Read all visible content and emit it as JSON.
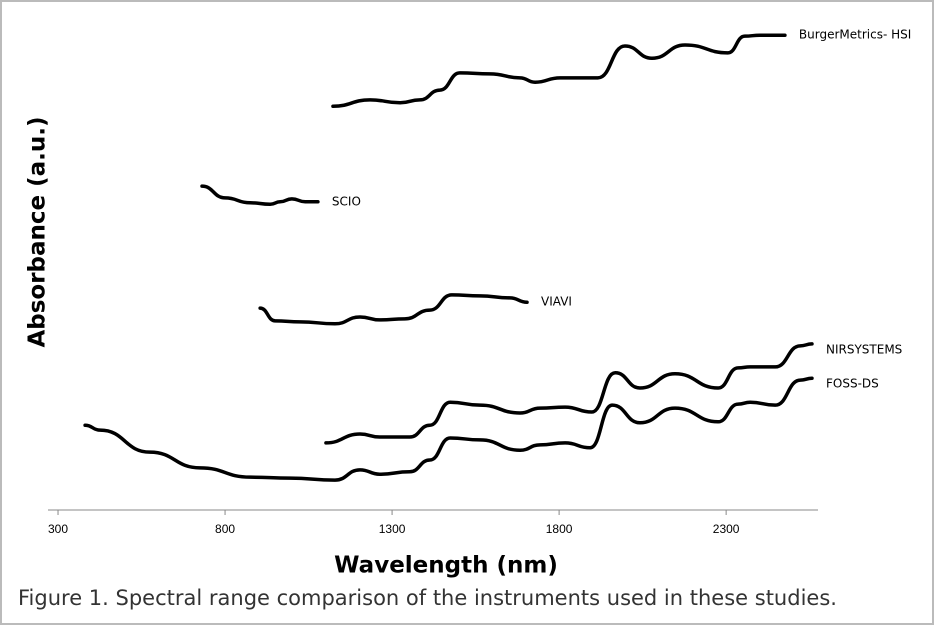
{
  "chart_data": {
    "type": "line",
    "caption": "Figure 1. Spectral range comparison of the instruments used in these studies.",
    "x_label": "Wavelength (nm)",
    "y_label": "Absorbance (a.u.)",
    "xlim": [
      270,
      2575
    ],
    "xticks": [
      300,
      800,
      1300,
      1800,
      2300
    ],
    "ylim": [
      0,
      100
    ],
    "series": [
      {
        "name": "BurgerMetrics- HSI",
        "color": "#000000",
        "x": [
          1123,
          1234,
          1324,
          1383,
          1443,
          1503,
          1593,
          1683,
          1728,
          1803,
          1916,
          1997,
          2078,
          2177,
          2305,
          2356,
          2401,
          2476
        ],
        "values": [
          82.4,
          83.7,
          83.1,
          83.7,
          85.7,
          89.2,
          89.0,
          88.2,
          87.3,
          88.2,
          88.2,
          94.7,
          92.2,
          94.9,
          93.3,
          96.7,
          96.9,
          96.9
        ]
      },
      {
        "name": "SCIO",
        "color": "#000000",
        "x": [
          731,
          800,
          875,
          935,
          965,
          1000,
          1040,
          1078
        ],
        "values": [
          66.1,
          63.7,
          62.7,
          62.4,
          62.9,
          63.5,
          62.9,
          62.9
        ]
      },
      {
        "name": "VIAVI",
        "color": "#000000",
        "x": [
          905,
          950,
          1025,
          1129,
          1204,
          1263,
          1338,
          1413,
          1479,
          1563,
          1653,
          1704
        ],
        "values": [
          41.2,
          38.6,
          38.4,
          38.0,
          39.4,
          38.8,
          39.0,
          40.8,
          43.9,
          43.7,
          43.3,
          42.4
        ]
      },
      {
        "name": "NIRSYSTEMS",
        "color": "#000000",
        "x": [
          1102,
          1204,
          1263,
          1353,
          1413,
          1474,
          1563,
          1683,
          1743,
          1818,
          1898,
          1968,
          2042,
          2147,
          2276,
          2336,
          2372,
          2447,
          2522,
          2557
        ],
        "values": [
          13.7,
          15.5,
          14.9,
          14.9,
          17.3,
          22.0,
          21.4,
          19.8,
          20.8,
          21.0,
          20.0,
          28.0,
          24.9,
          27.8,
          24.9,
          29.0,
          29.2,
          29.2,
          33.5,
          33.9
        ]
      },
      {
        "name": "FOSS-DS",
        "color": "#000000",
        "x": [
          381,
          426,
          575,
          725,
          875,
          995,
          1129,
          1204,
          1263,
          1353,
          1413,
          1474,
          1563,
          1683,
          1743,
          1818,
          1893,
          1959,
          2042,
          2147,
          2276,
          2336,
          2372,
          2447,
          2522,
          2557
        ],
        "values": [
          17.3,
          16.3,
          11.8,
          8.6,
          6.7,
          6.5,
          6.1,
          8.2,
          7.3,
          7.8,
          10.2,
          14.7,
          14.3,
          12.2,
          13.3,
          13.7,
          12.7,
          21.4,
          17.8,
          20.8,
          18.0,
          21.6,
          22.0,
          21.4,
          26.5,
          26.9
        ]
      }
    ]
  }
}
